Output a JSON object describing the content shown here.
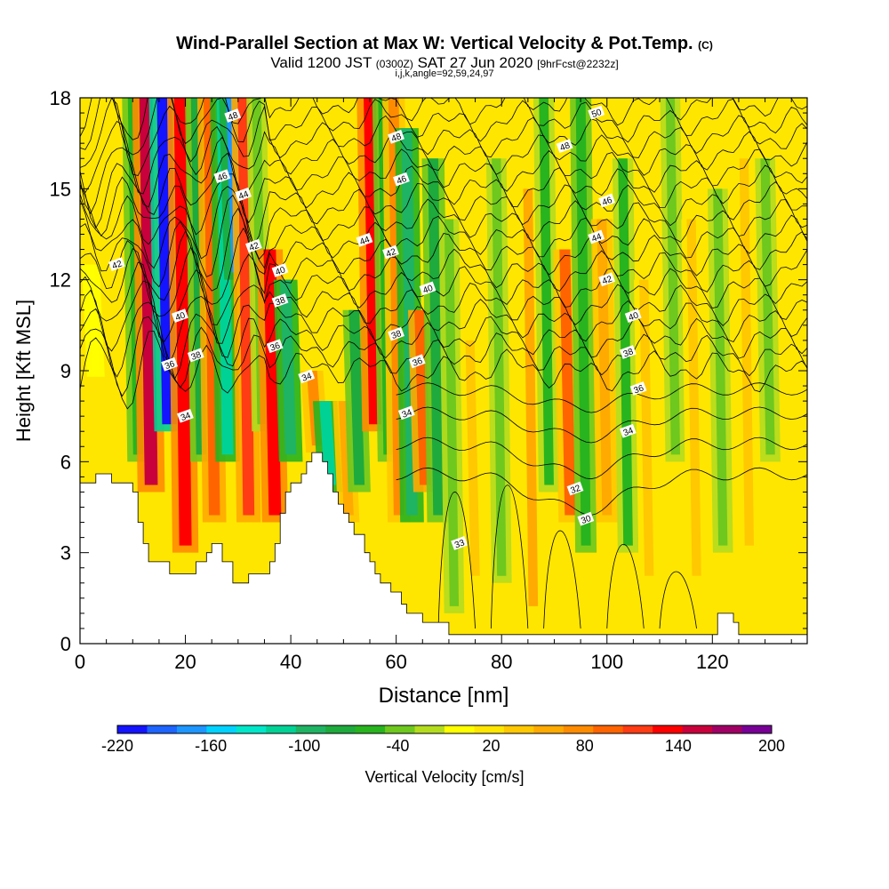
{
  "chart_data": {
    "type": "heatmap",
    "title_main": "Wind-Parallel Section at Max W: Vertical Velocity & Pot.Temp.",
    "title_copyright": "(C)",
    "subtitle_prefix": "Valid 1200 JST",
    "subtitle_utc": "(0300Z)",
    "subtitle_date": "SAT 27 Jun 2020",
    "subtitle_fcst": "[9hrFcst@2232z]",
    "grid_info": "i,j,k,angle=92,59,24,97",
    "xlabel": "Distance [nm]",
    "ylabel": "Height [Kft MSL]",
    "xlim": [
      0,
      138
    ],
    "ylim": [
      0,
      18
    ],
    "xticks": [
      0,
      20,
      40,
      60,
      80,
      100,
      120
    ],
    "yticks": [
      0,
      3,
      6,
      9,
      12,
      15,
      18
    ],
    "colorbar": {
      "label": "Vertical Velocity [cm/s]",
      "ticks": [
        -220,
        -160,
        -100,
        -40,
        20,
        80,
        140,
        200
      ],
      "range": [
        -220,
        200
      ],
      "colors": [
        "#1414ff",
        "#1e64ff",
        "#1e96ff",
        "#00d2ff",
        "#00e6c8",
        "#00d296",
        "#1eb464",
        "#1eaa3c",
        "#28b41e",
        "#6ec81e",
        "#b4dc1e",
        "#ffff00",
        "#ffe600",
        "#ffc800",
        "#ffaa00",
        "#ff8c00",
        "#ff6400",
        "#ff3c14",
        "#ff0000",
        "#c8003c",
        "#a00064",
        "#780096"
      ]
    },
    "vertical_velocity_bands": [
      {
        "x": 2,
        "w": 0,
        "top": 12.5,
        "bottom": 8.8
      },
      {
        "x": 10,
        "w": -60,
        "top": 18,
        "bottom": 6
      },
      {
        "x": 12.5,
        "w": 160,
        "top": 18,
        "bottom": 5
      },
      {
        "x": 16,
        "w": -220,
        "top": 18,
        "bottom": 7
      },
      {
        "x": 19,
        "w": 140,
        "top": 18,
        "bottom": 3
      },
      {
        "x": 22,
        "w": -70,
        "top": 18,
        "bottom": 6
      },
      {
        "x": 24.5,
        "w": 100,
        "top": 18,
        "bottom": 4
      },
      {
        "x": 27,
        "w": -110,
        "top": 18,
        "bottom": 6
      },
      {
        "x": 29,
        "w": -170,
        "top": 18,
        "bottom": 12
      },
      {
        "x": 31,
        "w": 110,
        "top": 18,
        "bottom": 4
      },
      {
        "x": 33.5,
        "w": -40,
        "top": 18,
        "bottom": 7
      },
      {
        "x": 36,
        "w": 140,
        "top": 13,
        "bottom": 4
      },
      {
        "x": 39,
        "w": -100,
        "top": 12,
        "bottom": 6
      },
      {
        "x": 44,
        "w": 80,
        "top": 9,
        "bottom": 6.3
      },
      {
        "x": 46.5,
        "w": -110,
        "top": 8,
        "bottom": 5
      },
      {
        "x": 50,
        "w": 60,
        "top": 8,
        "bottom": 4
      },
      {
        "x": 52,
        "w": -80,
        "top": 11,
        "bottom": 5
      },
      {
        "x": 55,
        "w": 140,
        "top": 18,
        "bottom": 7
      },
      {
        "x": 57.5,
        "w": -60,
        "top": 18,
        "bottom": 6
      },
      {
        "x": 59.5,
        "w": 80,
        "top": 18,
        "bottom": 4
      },
      {
        "x": 62,
        "w": -100,
        "top": 17,
        "bottom": 4
      },
      {
        "x": 64.5,
        "w": 100,
        "top": 11,
        "bottom": 5
      },
      {
        "x": 67,
        "w": -80,
        "top": 16,
        "bottom": 4
      },
      {
        "x": 70,
        "w": -40,
        "top": 14,
        "bottom": 1
      },
      {
        "x": 74,
        "w": 40,
        "top": 10,
        "bottom": 2
      },
      {
        "x": 79,
        "w": -40,
        "top": 16,
        "bottom": 2
      },
      {
        "x": 85,
        "w": 50,
        "top": 15,
        "bottom": 1
      },
      {
        "x": 88,
        "w": -50,
        "top": 18,
        "bottom": 5
      },
      {
        "x": 92,
        "w": 90,
        "top": 13,
        "bottom": 4
      },
      {
        "x": 95,
        "w": -60,
        "top": 18,
        "bottom": 3
      },
      {
        "x": 99,
        "w": 60,
        "top": 14,
        "bottom": 4
      },
      {
        "x": 103,
        "w": -50,
        "top": 16,
        "bottom": 3
      },
      {
        "x": 107,
        "w": 40,
        "top": 12,
        "bottom": 2
      },
      {
        "x": 112,
        "w": -40,
        "top": 18,
        "bottom": 6
      },
      {
        "x": 116,
        "w": 40,
        "top": 14,
        "bottom": 2
      },
      {
        "x": 121,
        "w": -40,
        "top": 15,
        "bottom": 3
      },
      {
        "x": 126,
        "w": 40,
        "top": 16,
        "bottom": 3
      },
      {
        "x": 130,
        "w": -40,
        "top": 16,
        "bottom": 6
      },
      {
        "x": 135,
        "w": 20,
        "top": 16,
        "bottom": 2
      }
    ],
    "terrain": [
      [
        0,
        5.3
      ],
      [
        3,
        5.3
      ],
      [
        3,
        5.6
      ],
      [
        6,
        5.6
      ],
      [
        6,
        5.3
      ],
      [
        10,
        5.3
      ],
      [
        10,
        5.0
      ],
      [
        11,
        5.0
      ],
      [
        11,
        4.0
      ],
      [
        12,
        4.0
      ],
      [
        12,
        3.3
      ],
      [
        13,
        3.3
      ],
      [
        13,
        2.7
      ],
      [
        17,
        2.7
      ],
      [
        17,
        2.3
      ],
      [
        22,
        2.3
      ],
      [
        22,
        2.7
      ],
      [
        24,
        2.7
      ],
      [
        24,
        3.0
      ],
      [
        25,
        3.0
      ],
      [
        25,
        3.3
      ],
      [
        27,
        3.3
      ],
      [
        27,
        2.7
      ],
      [
        29,
        2.7
      ],
      [
        29,
        2.0
      ],
      [
        32,
        2.0
      ],
      [
        32,
        2.3
      ],
      [
        36,
        2.3
      ],
      [
        36,
        2.7
      ],
      [
        37,
        2.7
      ],
      [
        37,
        3.3
      ],
      [
        38,
        3.3
      ],
      [
        38,
        4.3
      ],
      [
        39,
        4.3
      ],
      [
        39,
        5.0
      ],
      [
        40,
        5.0
      ],
      [
        40,
        5.3
      ],
      [
        42,
        5.3
      ],
      [
        42,
        5.6
      ],
      [
        43,
        5.6
      ],
      [
        43,
        6.0
      ],
      [
        44,
        6.0
      ],
      [
        44,
        6.3
      ],
      [
        46,
        6.3
      ],
      [
        46,
        6.0
      ],
      [
        47,
        6.0
      ],
      [
        47,
        5.6
      ],
      [
        48,
        5.6
      ],
      [
        48,
        5.0
      ],
      [
        49,
        5.0
      ],
      [
        49,
        4.6
      ],
      [
        50,
        4.6
      ],
      [
        50,
        4.3
      ],
      [
        51,
        4.3
      ],
      [
        51,
        4.0
      ],
      [
        52,
        4.0
      ],
      [
        52,
        3.6
      ],
      [
        54,
        3.6
      ],
      [
        54,
        3.0
      ],
      [
        55,
        3.0
      ],
      [
        55,
        2.7
      ],
      [
        56,
        2.7
      ],
      [
        56,
        2.3
      ],
      [
        57,
        2.3
      ],
      [
        57,
        2.0
      ],
      [
        59,
        2.0
      ],
      [
        59,
        1.7
      ],
      [
        61,
        1.7
      ],
      [
        61,
        1.3
      ],
      [
        62,
        1.3
      ],
      [
        62,
        1.0
      ],
      [
        65,
        1.0
      ],
      [
        65,
        0.7
      ],
      [
        70,
        0.7
      ],
      [
        70,
        0.3
      ],
      [
        121,
        0.3
      ],
      [
        121,
        1.0
      ],
      [
        124,
        1.0
      ],
      [
        124,
        0.7
      ],
      [
        125,
        0.7
      ],
      [
        125,
        0.3
      ],
      [
        138,
        0.3
      ]
    ],
    "theta_contours": [
      {
        "level": 30,
        "label_at": [
          96,
          4.1
        ]
      },
      {
        "level": 32,
        "label_at": [
          94,
          5.1
        ]
      },
      {
        "level": 33,
        "label_at": [
          72,
          3.3
        ]
      },
      {
        "level": 34,
        "label_at": [
          20,
          7.5
        ]
      },
      {
        "level": 34,
        "label_at": [
          43,
          8.8
        ]
      },
      {
        "level": 34,
        "label_at": [
          62,
          7.6
        ]
      },
      {
        "level": 34,
        "label_at": [
          104,
          7.0
        ]
      },
      {
        "level": 36,
        "label_at": [
          17,
          9.2
        ]
      },
      {
        "level": 36,
        "label_at": [
          37,
          9.8
        ]
      },
      {
        "level": 36,
        "label_at": [
          64,
          9.3
        ]
      },
      {
        "level": 36,
        "label_at": [
          106,
          8.4
        ]
      },
      {
        "level": 38,
        "label_at": [
          22,
          9.5
        ]
      },
      {
        "level": 38,
        "label_at": [
          38,
          11.3
        ]
      },
      {
        "level": 38,
        "label_at": [
          60,
          10.2
        ]
      },
      {
        "level": 38,
        "label_at": [
          104,
          9.6
        ]
      },
      {
        "level": 40,
        "label_at": [
          19,
          10.8
        ]
      },
      {
        "level": 40,
        "label_at": [
          38,
          12.3
        ]
      },
      {
        "level": 40,
        "label_at": [
          66,
          11.7
        ]
      },
      {
        "level": 40,
        "label_at": [
          105,
          10.8
        ]
      },
      {
        "level": 42,
        "label_at": [
          7,
          12.5
        ]
      },
      {
        "level": 42,
        "label_at": [
          33,
          13.1
        ]
      },
      {
        "level": 42,
        "label_at": [
          59,
          12.9
        ]
      },
      {
        "level": 42,
        "label_at": [
          100,
          12.0
        ]
      },
      {
        "level": 44,
        "label_at": [
          31,
          14.8
        ]
      },
      {
        "level": 44,
        "label_at": [
          54,
          13.3
        ]
      },
      {
        "level": 44,
        "label_at": [
          98,
          13.4
        ]
      },
      {
        "level": 46,
        "label_at": [
          27,
          15.4
        ]
      },
      {
        "level": 46,
        "label_at": [
          61,
          15.3
        ]
      },
      {
        "level": 46,
        "label_at": [
          100,
          14.6
        ]
      },
      {
        "level": 48,
        "label_at": [
          29,
          17.4
        ]
      },
      {
        "level": 48,
        "label_at": [
          60,
          16.7
        ]
      },
      {
        "level": 48,
        "label_at": [
          92,
          16.4
        ]
      },
      {
        "level": 50,
        "label_at": [
          98,
          17.5
        ]
      }
    ]
  }
}
